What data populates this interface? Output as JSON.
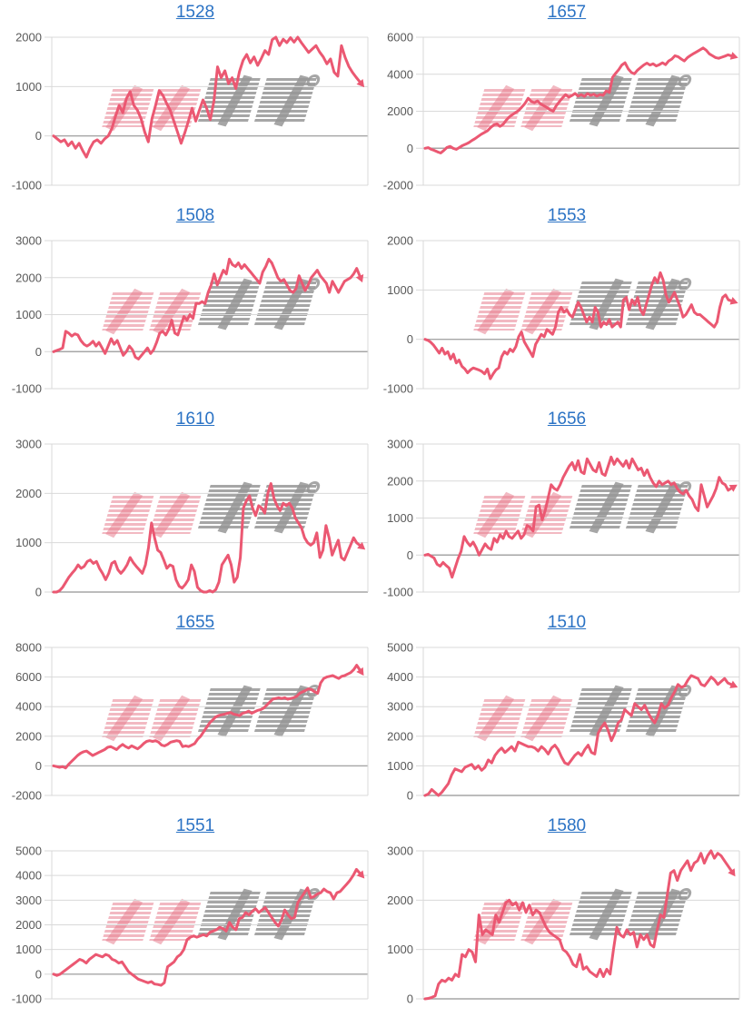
{
  "page": {
    "background": "#ffffff"
  },
  "colors": {
    "series": "#eb5872",
    "grid": "#d9d9d9",
    "zero_line": "#a6a6a6",
    "axis_label": "#595959",
    "title_link": "#2a72c4",
    "watermark_pink": "rgba(231,127,144,0.55)",
    "watermark_gray": "rgba(150,150,150,0.85)"
  },
  "watermark": {
    "text": "みんレポ",
    "pink_part": "みん",
    "gray_part": "レポ"
  },
  "chart_data": [
    {
      "type": "line",
      "title": "1528",
      "xlabel": "",
      "ylabel": "",
      "ylim": [
        -1000,
        2000
      ],
      "yticks": [
        2000,
        1000,
        0,
        -1000
      ],
      "grid": true,
      "legend": "none",
      "values": [
        0,
        -60,
        -120,
        -80,
        -200,
        -120,
        -250,
        -150,
        -300,
        -430,
        -250,
        -120,
        -80,
        -150,
        -60,
        0,
        150,
        400,
        620,
        470,
        760,
        900,
        620,
        520,
        350,
        80,
        -120,
        350,
        620,
        920,
        820,
        660,
        520,
        300,
        80,
        -150,
        60,
        300,
        560,
        300,
        520,
        730,
        560,
        330,
        700,
        1400,
        1180,
        1320,
        1060,
        1180,
        960,
        1300,
        1530,
        1650,
        1480,
        1600,
        1430,
        1570,
        1730,
        1650,
        1950,
        2000,
        1830,
        1960,
        1890,
        1990,
        1900,
        2000,
        1890,
        1790,
        1690,
        1760,
        1830,
        1700,
        1600,
        1460,
        1560,
        1290,
        1210,
        1830,
        1590,
        1410,
        1290,
        1190,
        1100
      ]
    },
    {
      "type": "line",
      "title": "1657",
      "xlabel": "",
      "ylabel": "",
      "ylim": [
        -2000,
        6000
      ],
      "yticks": [
        6000,
        4000,
        2000,
        0,
        -2000
      ],
      "grid": true,
      "legend": "none",
      "values": [
        0,
        30,
        -60,
        -120,
        -200,
        -260,
        -120,
        40,
        100,
        0,
        -60,
        40,
        150,
        220,
        300,
        420,
        520,
        640,
        760,
        850,
        950,
        1120,
        1260,
        1320,
        1180,
        1300,
        1520,
        1700,
        1820,
        1930,
        2050,
        2230,
        2420,
        2700,
        2530,
        2460,
        2560,
        2400,
        2300,
        2200,
        2080,
        2000,
        2300,
        2520,
        2720,
        2900,
        2760,
        2850,
        2960,
        2820,
        2900,
        2800,
        2950,
        2860,
        2920,
        2820,
        2900,
        2860,
        3100,
        3020,
        3820,
        4050,
        4250,
        4500,
        4620,
        4300,
        4100,
        4020,
        4220,
        4360,
        4500,
        4600,
        4500,
        4560,
        4450,
        4520,
        4620,
        4520,
        4720,
        4820,
        5000,
        4950,
        4820,
        4720,
        4900,
        5020,
        5120,
        5220,
        5320,
        5420,
        5300,
        5100,
        5000,
        4900,
        4860,
        4920,
        4980,
        5050,
        5000
      ]
    },
    {
      "type": "line",
      "title": "1508",
      "xlabel": "",
      "ylabel": "",
      "ylim": [
        -1000,
        3000
      ],
      "yticks": [
        3000,
        2000,
        1000,
        0,
        -1000
      ],
      "grid": true,
      "legend": "none",
      "values": [
        0,
        30,
        60,
        100,
        550,
        500,
        420,
        480,
        450,
        300,
        200,
        150,
        200,
        280,
        150,
        250,
        100,
        -50,
        150,
        350,
        200,
        300,
        100,
        -100,
        0,
        150,
        50,
        -150,
        -200,
        -100,
        0,
        100,
        -50,
        50,
        250,
        500,
        550,
        450,
        600,
        850,
        500,
        450,
        700,
        950,
        850,
        1000,
        900,
        1300,
        1300,
        1350,
        1300,
        1600,
        1800,
        2100,
        1800,
        2000,
        2200,
        2100,
        2500,
        2350,
        2300,
        2400,
        2250,
        2350,
        2250,
        2150,
        2050,
        1950,
        1850,
        2150,
        2300,
        2500,
        2400,
        2200,
        2000,
        1900,
        1950,
        1800,
        1650,
        1600,
        1700,
        2050,
        1850,
        1650,
        1800,
        2000,
        2100,
        2200,
        2050,
        1950,
        1850,
        1600,
        1900,
        1750,
        1600,
        1750,
        1900,
        1950,
        2000,
        2100,
        2250,
        2050
      ]
    },
    {
      "type": "line",
      "title": "1553",
      "xlabel": "",
      "ylabel": "",
      "ylim": [
        -1000,
        2000
      ],
      "yticks": [
        2000,
        1000,
        0,
        -1000
      ],
      "grid": true,
      "legend": "none",
      "values": [
        0,
        -20,
        -60,
        -120,
        -200,
        -280,
        -180,
        -300,
        -250,
        -400,
        -300,
        -480,
        -420,
        -550,
        -600,
        -680,
        -620,
        -580,
        -600,
        -620,
        -650,
        -700,
        -600,
        -800,
        -700,
        -620,
        -580,
        -350,
        -250,
        -300,
        -200,
        -250,
        -150,
        50,
        150,
        -50,
        -150,
        -250,
        -350,
        -100,
        0,
        100,
        50,
        200,
        150,
        100,
        250,
        550,
        650,
        550,
        600,
        500,
        450,
        600,
        750,
        650,
        500,
        350,
        450,
        350,
        650,
        550,
        250,
        350,
        300,
        400,
        250,
        300,
        350,
        250,
        800,
        850,
        600,
        800,
        700,
        850,
        600,
        500,
        700,
        900,
        1100,
        1250,
        1150,
        1350,
        1200,
        900,
        750,
        850,
        950,
        800,
        650,
        450,
        500,
        600,
        700,
        550,
        500,
        500,
        450,
        400,
        350,
        300,
        250,
        350,
        650,
        850,
        900,
        800,
        780
      ]
    },
    {
      "type": "line",
      "title": "1610",
      "xlabel": "",
      "ylabel": "",
      "ylim": [
        0,
        3000
      ],
      "yticks": [
        3000,
        2000,
        1000,
        0
      ],
      "grid": true,
      "legend": "none",
      "values": [
        0,
        0,
        30,
        100,
        200,
        300,
        380,
        450,
        550,
        480,
        520,
        620,
        650,
        580,
        620,
        480,
        380,
        250,
        380,
        580,
        620,
        450,
        380,
        450,
        550,
        700,
        600,
        520,
        450,
        380,
        550,
        900,
        1400,
        1100,
        850,
        800,
        650,
        480,
        550,
        520,
        250,
        120,
        80,
        150,
        250,
        550,
        420,
        100,
        30,
        0,
        0,
        30,
        0,
        50,
        200,
        550,
        650,
        750,
        550,
        200,
        300,
        700,
        1700,
        1850,
        1950,
        1700,
        1550,
        1750,
        1700,
        1600,
        2000,
        2200,
        1900,
        1750,
        1650,
        1800,
        1750,
        1800,
        1700,
        1500,
        1400,
        1300,
        1100,
        1000,
        950,
        1000,
        1200,
        700,
        850,
        1350,
        1100,
        750,
        900,
        1050,
        700,
        650,
        800,
        950,
        1100,
        1000,
        950
      ]
    },
    {
      "type": "line",
      "title": "1656",
      "xlabel": "",
      "ylabel": "",
      "ylim": [
        -1000,
        3000
      ],
      "yticks": [
        3000,
        2000,
        1000,
        0,
        -1000
      ],
      "grid": true,
      "legend": "none",
      "values": [
        0,
        20,
        -30,
        -80,
        -250,
        -300,
        -200,
        -280,
        -350,
        -600,
        -350,
        -100,
        100,
        500,
        350,
        250,
        350,
        200,
        0,
        150,
        300,
        200,
        150,
        450,
        350,
        550,
        450,
        650,
        500,
        450,
        550,
        650,
        450,
        550,
        800,
        750,
        650,
        1300,
        1350,
        950,
        1200,
        1550,
        1900,
        1800,
        1750,
        1900,
        2100,
        2250,
        2400,
        2500,
        2300,
        2550,
        2250,
        2200,
        2600,
        2450,
        2300,
        2250,
        2500,
        2200,
        2150,
        2400,
        2650,
        2450,
        2600,
        2500,
        2400,
        2550,
        2350,
        2600,
        2450,
        2300,
        2350,
        2150,
        2300,
        2100,
        1950,
        1850,
        2000,
        1900,
        1950,
        2000,
        1900,
        1950,
        1800,
        1700,
        1650,
        1750,
        1600,
        1500,
        1300,
        1200,
        1900,
        1600,
        1300,
        1450,
        1600,
        1800,
        2100,
        1950,
        1900,
        1750,
        1800
      ]
    },
    {
      "type": "line",
      "title": "1655",
      "xlabel": "",
      "ylabel": "",
      "ylim": [
        -2000,
        8000
      ],
      "yticks": [
        8000,
        6000,
        4000,
        2000,
        0,
        -2000
      ],
      "grid": true,
      "legend": "none",
      "values": [
        0,
        -50,
        -100,
        -50,
        -150,
        100,
        300,
        500,
        700,
        850,
        950,
        1000,
        850,
        700,
        800,
        900,
        1000,
        1100,
        1250,
        1300,
        1200,
        1100,
        1300,
        1450,
        1300,
        1200,
        1350,
        1250,
        1150,
        1300,
        1500,
        1650,
        1700,
        1650,
        1700,
        1600,
        1400,
        1350,
        1450,
        1600,
        1650,
        1700,
        1650,
        1300,
        1350,
        1300,
        1400,
        1500,
        1800,
        2000,
        2300,
        2600,
        2900,
        3100,
        3300,
        3400,
        3450,
        3500,
        3550,
        3600,
        3500,
        3450,
        3400,
        3550,
        3600,
        3700,
        3550,
        3650,
        3750,
        3800,
        3900,
        4100,
        4300,
        4500,
        4550,
        4600,
        4550,
        4600,
        4500,
        4550,
        4600,
        4700,
        4900,
        5000,
        5100,
        5200,
        5150,
        5000,
        4900,
        5600,
        5900,
        6000,
        6050,
        6100,
        6000,
        5900,
        6050,
        6100,
        6200,
        6300,
        6500,
        6800,
        6500
      ]
    },
    {
      "type": "line",
      "title": "1510",
      "xlabel": "",
      "ylabel": "",
      "ylim": [
        0,
        5000
      ],
      "yticks": [
        5000,
        4000,
        3000,
        2000,
        1000,
        0
      ],
      "grid": true,
      "legend": "none",
      "values": [
        0,
        50,
        200,
        100,
        0,
        100,
        250,
        400,
        700,
        900,
        850,
        800,
        950,
        1000,
        1050,
        900,
        1000,
        850,
        950,
        1200,
        1100,
        1350,
        1500,
        1600,
        1450,
        1550,
        1650,
        1500,
        1800,
        1750,
        1700,
        1650,
        1650,
        1600,
        1500,
        1650,
        1550,
        1400,
        1600,
        1700,
        1550,
        1300,
        1100,
        1050,
        1200,
        1350,
        1450,
        1350,
        1550,
        1700,
        1450,
        1400,
        2100,
        2300,
        2450,
        2200,
        1850,
        2100,
        2450,
        2550,
        2900,
        2800,
        2700,
        3100,
        3000,
        2900,
        3050,
        2800,
        2600,
        2450,
        2700,
        3100,
        2950,
        3050,
        3300,
        3500,
        3750,
        3650,
        3700,
        3900,
        4050,
        4000,
        3950,
        3750,
        3700,
        3850,
        4000,
        3900,
        3750,
        3850,
        3950,
        3800,
        3750
      ]
    },
    {
      "type": "line",
      "title": "1551",
      "xlabel": "",
      "ylabel": "",
      "ylim": [
        -1000,
        5000
      ],
      "yticks": [
        5000,
        4000,
        3000,
        2000,
        1000,
        0,
        -1000
      ],
      "grid": true,
      "legend": "none",
      "values": [
        0,
        -50,
        0,
        100,
        200,
        300,
        400,
        500,
        600,
        550,
        450,
        600,
        700,
        800,
        750,
        700,
        800,
        750,
        600,
        550,
        450,
        500,
        300,
        100,
        0,
        -100,
        -200,
        -250,
        -300,
        -350,
        -300,
        -400,
        -420,
        -450,
        -350,
        300,
        400,
        500,
        700,
        800,
        1000,
        1400,
        1500,
        1550,
        1500,
        1550,
        1600,
        1550,
        1700,
        1750,
        1800,
        1900,
        1850,
        1750,
        2100,
        1900,
        1800,
        2250,
        2300,
        2500,
        2400,
        2550,
        2650,
        2500,
        2600,
        2700,
        2500,
        2300,
        2100,
        1950,
        2200,
        2600,
        2400,
        2250,
        2300,
        2900,
        3100,
        3300,
        3500,
        3100,
        3150,
        3250,
        3300,
        3450,
        3350,
        3300,
        3050,
        3300,
        3350,
        3500,
        3650,
        3800,
        4000,
        4250,
        4100
      ]
    },
    {
      "type": "line",
      "title": "1580",
      "xlabel": "",
      "ylabel": "",
      "ylim": [
        0,
        3000
      ],
      "yticks": [
        3000,
        2000,
        1000,
        0
      ],
      "grid": true,
      "legend": "none",
      "values": [
        0,
        10,
        30,
        60,
        300,
        380,
        350,
        420,
        380,
        500,
        450,
        900,
        850,
        1000,
        950,
        750,
        1700,
        1300,
        1400,
        1350,
        1300,
        1700,
        1550,
        1750,
        1950,
        2000,
        1900,
        1950,
        1800,
        1950,
        1750,
        1900,
        1700,
        1800,
        1750,
        1600,
        1450,
        1350,
        1300,
        1250,
        1200,
        1000,
        950,
        850,
        700,
        650,
        900,
        600,
        650,
        550,
        500,
        450,
        600,
        450,
        600,
        500,
        1000,
        1450,
        1300,
        1250,
        1400,
        1300,
        1350,
        1050,
        1300,
        1200,
        1300,
        1100,
        1050,
        1400,
        1700,
        1650,
        2100,
        2550,
        2600,
        2400,
        2600,
        2700,
        2800,
        2600,
        2750,
        2800,
        2950,
        2750,
        2900,
        3000,
        2850,
        2950,
        2900,
        2800,
        2700,
        2600
      ]
    }
  ]
}
